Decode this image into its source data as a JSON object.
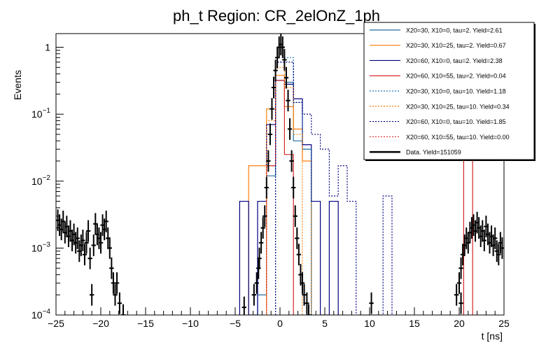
{
  "chart_data": {
    "type": "histogram",
    "title": "ph_t Region: CR_2elOnZ_1ph",
    "xlabel": "t [ns]",
    "ylabel": "Events",
    "xlim": [
      -25,
      25
    ],
    "ylim": [
      0.0001,
      1.6
    ],
    "yscale": "log",
    "grid": false,
    "legend_position": "top-right",
    "x_ticks": [
      "−25",
      "−20",
      "−15",
      "−10",
      "−5",
      "0",
      "5",
      "10",
      "15",
      "20",
      "25"
    ],
    "y_ticks": [
      {
        "base": "10",
        "exp": "−4",
        "value": 0.0001
      },
      {
        "base": "10",
        "exp": "−3",
        "value": 0.001
      },
      {
        "base": "10",
        "exp": "−2",
        "value": 0.01
      },
      {
        "base": "10",
        "exp": "−1",
        "value": 0.1
      },
      {
        "base": "1",
        "exp": "",
        "value": 1
      }
    ],
    "series": [
      {
        "name": "X20=30, X10=0, tau=2. Yield=2.61",
        "color": "#1f6f9f",
        "dash": false,
        "bins": [
          [
            -2.5,
            -1.5,
            0.0002
          ],
          [
            -1.5,
            -0.5,
            0.012
          ],
          [
            -0.5,
            0.5,
            0.32
          ],
          [
            0.5,
            1.5,
            0.3
          ],
          [
            1.5,
            2.5,
            0.04
          ],
          [
            2.5,
            3.5,
            0.03
          ]
        ]
      },
      {
        "name": "X20=30, X10=25, tau=2. Yield=0.67",
        "color": "#ff7f0e",
        "dash": false,
        "bins": [
          [
            -3.5,
            -2.5,
            0.017
          ],
          [
            -2.5,
            -1.5,
            0.017
          ],
          [
            -1.5,
            -0.5,
            0.12
          ],
          [
            -0.5,
            0.5,
            0.38
          ],
          [
            0.5,
            1.5,
            0.13
          ],
          [
            1.5,
            2.5,
            0.06
          ],
          [
            2.5,
            3.5,
            0.02
          ]
        ]
      },
      {
        "name": "X20=60, X10=0, tau=2. Yield=2.38",
        "color": "#00007f",
        "dash": false,
        "bins": [
          [
            -4.5,
            -3.5,
            0.005
          ],
          [
            -3.5,
            -2.5,
            0.0001
          ],
          [
            -2.5,
            -1.5,
            0.005
          ],
          [
            -1.5,
            -0.5,
            0.07
          ],
          [
            -0.5,
            0.5,
            0.32
          ],
          [
            0.5,
            1.5,
            0.28
          ],
          [
            1.5,
            2.5,
            0.17
          ],
          [
            2.5,
            3.5,
            0.035
          ],
          [
            3.5,
            4.5,
            0.005
          ],
          [
            4.5,
            5.5,
            0.0001
          ],
          [
            5.5,
            6.5,
            0.005
          ]
        ]
      },
      {
        "name": "X20=60, X10=55, tau=2. Yield=0.04",
        "color": "#d62728",
        "dash": false,
        "bins": [
          [
            -1.5,
            -0.5,
            0.017
          ],
          [
            -0.5,
            0.5,
            0.32
          ],
          [
            0.5,
            1.5,
            0.025
          ],
          [
            20.5,
            21.5,
            0.03
          ]
        ]
      },
      {
        "name": "X20=30, X10=0, tau=10. Yield=1.18",
        "color": "#1f77b4",
        "dash": true,
        "bins": [
          [
            -0.5,
            0.5,
            0.6
          ],
          [
            0.5,
            1.5,
            0.7
          ],
          [
            1.5,
            2.5,
            0.15
          ],
          [
            2.5,
            3.5,
            0.03
          ]
        ]
      },
      {
        "name": "X20=30, X10=25, tau=10. Yield=0.34",
        "color": "#ff7f0e",
        "dash": true,
        "bins": [
          [
            -1.5,
            -0.5,
            0.08
          ],
          [
            -0.5,
            0.5,
            0.5
          ],
          [
            0.5,
            1.5,
            0.25
          ],
          [
            1.5,
            2.5,
            0.05
          ]
        ]
      },
      {
        "name": "X20=60, X10=0, tau=10. Yield=1.85",
        "color": "#00007f",
        "dash": true,
        "bins": [
          [
            -0.5,
            0.5,
            0.6
          ],
          [
            0.5,
            1.5,
            0.6
          ],
          [
            1.5,
            2.5,
            0.15
          ],
          [
            2.5,
            3.5,
            0.1
          ],
          [
            3.5,
            4.5,
            0.05
          ],
          [
            4.5,
            5.5,
            0.03
          ],
          [
            5.5,
            6.5,
            0.006
          ],
          [
            6.5,
            7.5,
            0.017
          ],
          [
            7.5,
            8.5,
            0.005
          ],
          [
            8.5,
            11.5,
            0.0001
          ],
          [
            11.5,
            12.5,
            0.006
          ]
        ]
      },
      {
        "name": "X20=60, X10=55, tau=10. Yield=0.00",
        "color": "#d62728",
        "dash": true,
        "bins": []
      },
      {
        "name": "Data. Yield=151059",
        "color": "#000000",
        "dash": false,
        "is_data": true,
        "bins": []
      }
    ],
    "data_points": [
      [
        -24.8,
        0.0026
      ],
      [
        -24.6,
        0.0022
      ],
      [
        -24.4,
        0.0019
      ],
      [
        -24.2,
        0.0025
      ],
      [
        -24.0,
        0.0017
      ],
      [
        -23.8,
        0.0021
      ],
      [
        -23.6,
        0.0015
      ],
      [
        -23.4,
        0.0018
      ],
      [
        -23.2,
        0.0013
      ],
      [
        -23.0,
        0.0016
      ],
      [
        -22.8,
        0.0012
      ],
      [
        -22.6,
        0.0014
      ],
      [
        -22.4,
        0.0009
      ],
      [
        -22.2,
        0.0011
      ],
      [
        -22.0,
        0.0013
      ],
      [
        -21.8,
        0.0008
      ],
      [
        -21.6,
        0.0012
      ],
      [
        -21.4,
        0.0018
      ],
      [
        -21.2,
        0.0007
      ],
      [
        -21.0,
        0.0002
      ],
      [
        -20.8,
        0.0011
      ],
      [
        -20.6,
        0.0023
      ],
      [
        -20.4,
        0.0016
      ],
      [
        -20.2,
        0.0014
      ],
      [
        -20.0,
        0.0012
      ],
      [
        -19.8,
        0.0022
      ],
      [
        -19.6,
        0.0019
      ],
      [
        -19.4,
        0.0025
      ],
      [
        -19.2,
        0.0014
      ],
      [
        -19.0,
        0.001
      ],
      [
        -18.8,
        0.0005
      ],
      [
        -18.6,
        0.0003
      ],
      [
        -18.4,
        0.0002
      ],
      [
        -18.2,
        0.0003
      ],
      [
        -17.9,
        0.00015
      ],
      [
        -17.5,
        0.0001
      ],
      [
        -4.0,
        0.00013
      ],
      [
        -2.9,
        0.0002
      ],
      [
        -2.6,
        0.0003
      ],
      [
        -2.4,
        0.0005
      ],
      [
        -2.3,
        0.0007
      ],
      [
        -2.1,
        0.0012
      ],
      [
        -1.9,
        0.002
      ],
      [
        -1.7,
        0.003
      ],
      [
        -1.5,
        0.008
      ],
      [
        -1.3,
        0.02
      ],
      [
        -1.1,
        0.05
      ],
      [
        -0.9,
        0.12
      ],
      [
        -0.7,
        0.25
      ],
      [
        -0.5,
        0.45
      ],
      [
        -0.3,
        0.7
      ],
      [
        -0.1,
        1.0
      ],
      [
        0.1,
        1.1
      ],
      [
        0.3,
        1.0
      ],
      [
        0.5,
        0.65
      ],
      [
        0.7,
        0.35
      ],
      [
        0.9,
        0.16
      ],
      [
        1.1,
        0.06
      ],
      [
        1.3,
        0.02
      ],
      [
        1.5,
        0.008
      ],
      [
        1.7,
        0.003
      ],
      [
        1.9,
        0.0014
      ],
      [
        2.1,
        0.0008
      ],
      [
        2.3,
        0.0004
      ],
      [
        2.5,
        0.0003
      ],
      [
        2.7,
        0.0002
      ],
      [
        3.0,
        0.00015
      ],
      [
        3.2,
        0.0001
      ],
      [
        10.2,
        0.00015
      ],
      [
        19.7,
        0.0002
      ],
      [
        20.0,
        0.0003
      ],
      [
        20.2,
        0.0005
      ],
      [
        20.4,
        0.0008
      ],
      [
        20.6,
        0.0011
      ],
      [
        20.8,
        0.0014
      ],
      [
        21.0,
        0.0012
      ],
      [
        21.2,
        0.0017
      ],
      [
        21.4,
        0.002
      ],
      [
        21.6,
        0.0022
      ],
      [
        21.8,
        0.0018
      ],
      [
        22.0,
        0.0024
      ],
      [
        22.2,
        0.002
      ],
      [
        22.4,
        0.0015
      ],
      [
        22.6,
        0.0018
      ],
      [
        22.8,
        0.0013
      ],
      [
        23.0,
        0.0021
      ],
      [
        23.2,
        0.0016
      ],
      [
        23.4,
        0.0012
      ],
      [
        23.6,
        0.0015
      ],
      [
        23.8,
        0.0011
      ],
      [
        24.0,
        0.0014
      ],
      [
        24.2,
        0.0009
      ],
      [
        24.4,
        0.0008
      ],
      [
        24.6,
        0.0012
      ],
      [
        24.8,
        0.001
      ],
      [
        20.2,
        0.00015
      ]
    ]
  }
}
